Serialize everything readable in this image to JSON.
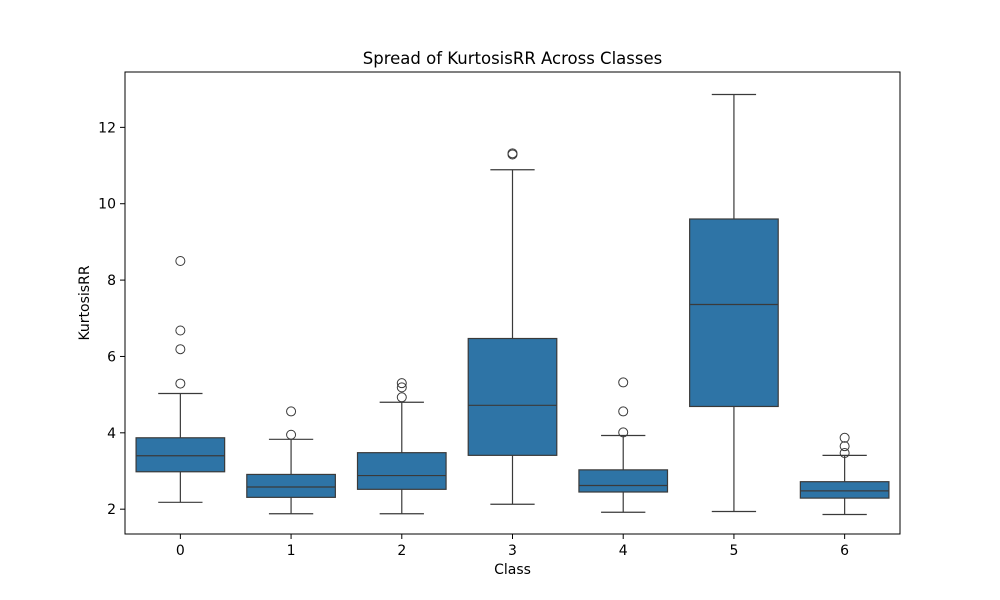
{
  "chart_data": {
    "type": "box",
    "title": "Spread of KurtosisRR Across Classes",
    "xlabel": "Class",
    "ylabel": "KurtosisRR",
    "categories": [
      "0",
      "1",
      "2",
      "3",
      "4",
      "5",
      "6"
    ],
    "yticks": [
      2,
      4,
      6,
      8,
      10,
      12
    ],
    "ylim": [
      1.35,
      13.45
    ],
    "grid": false,
    "legend": "none",
    "box_color": "#2e74a6",
    "line_color": "#3a3a3a",
    "boxes": [
      {
        "category": "0",
        "whisker_low": 2.18,
        "q1": 2.98,
        "median": 3.4,
        "q3": 3.87,
        "whisker_high": 5.03,
        "outliers": [
          5.29,
          6.19,
          6.68,
          8.5
        ]
      },
      {
        "category": "1",
        "whisker_low": 1.88,
        "q1": 2.31,
        "median": 2.58,
        "q3": 2.91,
        "whisker_high": 3.83,
        "outliers": [
          3.95,
          4.56
        ]
      },
      {
        "category": "2",
        "whisker_low": 1.88,
        "q1": 2.52,
        "median": 2.88,
        "q3": 3.48,
        "whisker_high": 4.8,
        "outliers": [
          4.93,
          5.19,
          5.3
        ]
      },
      {
        "category": "3",
        "whisker_low": 2.13,
        "q1": 3.41,
        "median": 4.72,
        "q3": 6.47,
        "whisker_high": 10.89,
        "outliers": [
          11.29,
          11.32
        ]
      },
      {
        "category": "4",
        "whisker_low": 1.92,
        "q1": 2.45,
        "median": 2.62,
        "q3": 3.03,
        "whisker_high": 3.93,
        "outliers": [
          4.01,
          4.56,
          5.32
        ]
      },
      {
        "category": "5",
        "whisker_low": 1.94,
        "q1": 4.69,
        "median": 7.36,
        "q3": 9.6,
        "whisker_high": 12.86,
        "outliers": []
      },
      {
        "category": "6",
        "whisker_low": 1.86,
        "q1": 2.29,
        "median": 2.48,
        "q3": 2.72,
        "whisker_high": 3.41,
        "outliers": [
          3.47,
          3.65,
          3.87
        ]
      }
    ]
  }
}
